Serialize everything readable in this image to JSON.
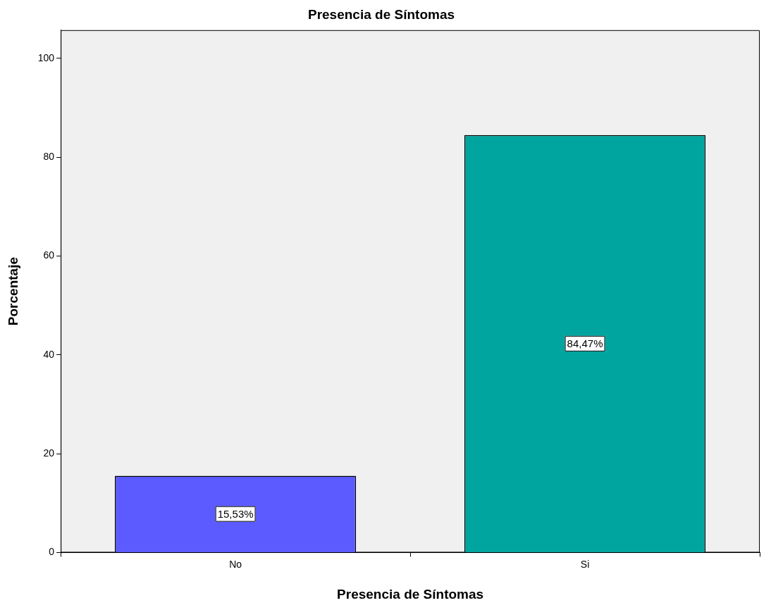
{
  "chart_data": {
    "type": "bar",
    "title": "Presencia de Síntomas",
    "xlabel": "Presencia de Síntomas",
    "ylabel": "Porcentaje",
    "categories": [
      "No",
      "Si"
    ],
    "values": [
      15.53,
      84.47
    ],
    "colors": [
      "#5b5bff",
      "#00a5a0"
    ],
    "value_labels": [
      "15,53%",
      "84,47%"
    ],
    "ylim": [
      0,
      105.7
    ],
    "yticks": [
      0,
      20,
      40,
      60,
      80,
      100
    ]
  }
}
